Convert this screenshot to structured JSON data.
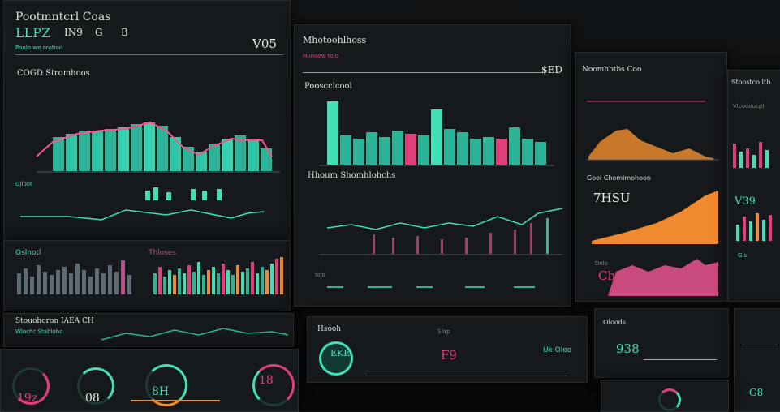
{
  "panel_a": {
    "title": "Pootmntcrl Coas",
    "kpis": [
      "LLPZ",
      "IN9",
      "G",
      "B"
    ],
    "sub_label": "Pnolo we orotion",
    "value_right": "V05",
    "chart_label": "COGD Stromhoos",
    "mini_label": "Gjibot",
    "bars_label": "Oslhotl",
    "bars_label2": "Thloses"
  },
  "panel_b": {
    "title": "Mhotoohlhoss",
    "sub_title": "Hunaow toio",
    "value_right": "$ED",
    "chart_label": "Pooscclcool",
    "chart2_label": "Hhoum Shomhlohchs",
    "strip_label": "Tolo"
  },
  "panel_c": {
    "title": "Noomhbtbs Coo",
    "val1": "7HSU",
    "val2": "Ch2",
    "label1": "Gool Chomimohoon",
    "label2": "Dolo"
  },
  "panel_d": {
    "title": "Stoostco ltb",
    "label": "Vlcodoucpl",
    "val": "V39",
    "label2": "Gls"
  },
  "panel_e": {
    "title": "Stouohoron IAEA CH",
    "sub": "Wlochc Stabloho"
  },
  "panel_f": {
    "gauges": [
      "19z",
      "08",
      "8H",
      "18"
    ]
  },
  "panel_g": {
    "title": "Hsooh",
    "sub": "Slirp",
    "gauge_val": "F9",
    "gauge_val2": "EKE",
    "label": "Uk Oloo"
  },
  "panel_h": {
    "title": "Oloods",
    "val": "938"
  },
  "panel_i": {
    "val": "G8"
  },
  "colors": {
    "teal": "#3fe0b8",
    "pink": "#e0407a",
    "orange": "#f08a2e",
    "bg": "#15191c"
  }
}
